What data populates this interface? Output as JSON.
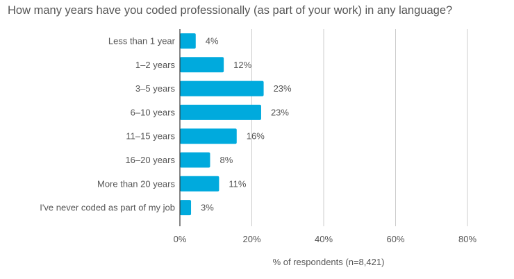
{
  "chart_data": {
    "type": "bar",
    "orientation": "horizontal",
    "title": "How many years have you coded professionally (as part of your work) in any language?",
    "xlabel": "% of respondents (n=8,421)",
    "ylabel": "",
    "categories": [
      "Less than 1 year",
      "1–2 years",
      "3–5 years",
      "6–10 years",
      "11–15 years",
      "16–20 years",
      "More than 20 years",
      "I've never coded as part of my job"
    ],
    "values": [
      4.4,
      12.2,
      23.3,
      22.6,
      15.8,
      8.4,
      10.9,
      3.1
    ],
    "value_labels": [
      "4%",
      "12%",
      "23%",
      "23%",
      "16%",
      "8%",
      "11%",
      "3%"
    ],
    "xlim": [
      0,
      80
    ],
    "xticks": [
      0,
      20,
      40,
      60,
      80
    ],
    "xtick_labels": [
      "0%",
      "20%",
      "40%",
      "60%",
      "80%"
    ],
    "grid": true,
    "bar_color": "#00aadd",
    "grid_color": "#cccccc"
  }
}
